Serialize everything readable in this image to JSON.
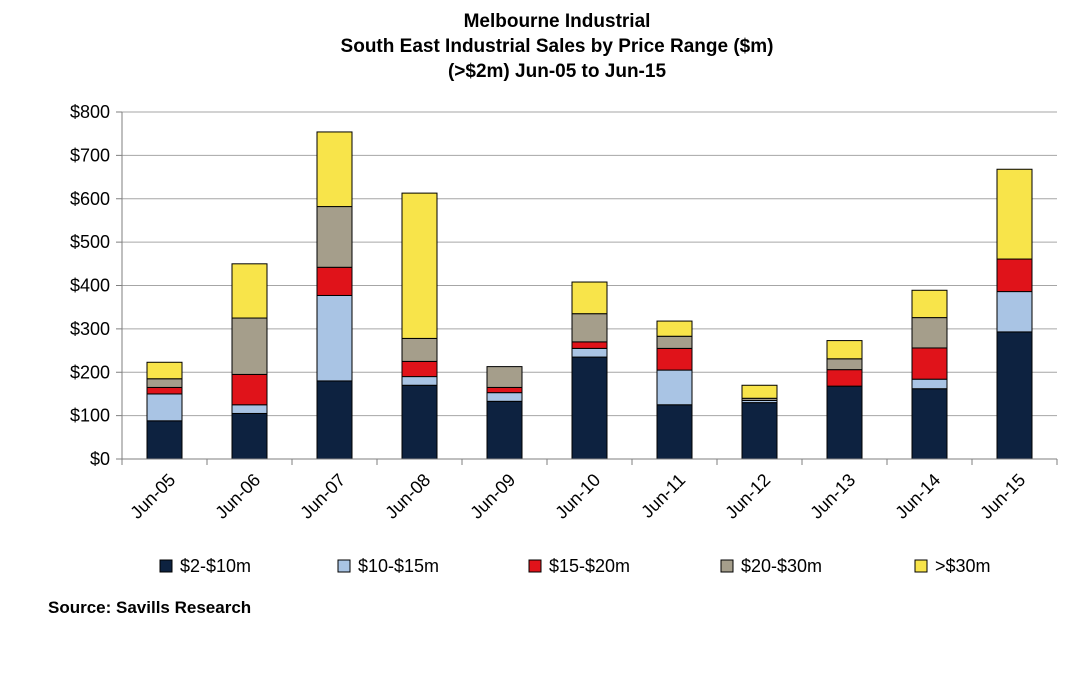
{
  "chart_data": {
    "type": "bar",
    "stacked": true,
    "title_lines": [
      "Melbourne Industrial",
      "South East Industrial Sales by Price Range ($m)",
      "(>$2m) Jun-05 to Jun-15"
    ],
    "categories": [
      "Jun-05",
      "Jun-06",
      "Jun-07",
      "Jun-08",
      "Jun-09",
      "Jun-10",
      "Jun-11",
      "Jun-12",
      "Jun-13",
      "Jun-14",
      "Jun-15"
    ],
    "series": [
      {
        "name": "$2-$10m",
        "color": "#0d2240",
        "values": [
          88,
          105,
          180,
          170,
          133,
          235,
          125,
          130,
          168,
          162,
          293
        ]
      },
      {
        "name": "$10-$15m",
        "color": "#a9c4e4",
        "values": [
          62,
          20,
          197,
          20,
          20,
          20,
          80,
          5,
          0,
          22,
          93
        ]
      },
      {
        "name": "$15-$20m",
        "color": "#e0131a",
        "values": [
          15,
          70,
          65,
          35,
          12,
          15,
          50,
          0,
          38,
          72,
          75
        ]
      },
      {
        "name": "$20-$30m",
        "color": "#a59e8b",
        "values": [
          20,
          130,
          140,
          53,
          48,
          65,
          28,
          5,
          25,
          70,
          0
        ]
      },
      {
        "name": ">$30m",
        "color": "#f8e44a",
        "values": [
          38,
          125,
          172,
          335,
          0,
          73,
          35,
          30,
          42,
          63,
          207
        ]
      }
    ],
    "ylim": [
      0,
      800
    ],
    "yticks": [
      0,
      100,
      200,
      300,
      400,
      500,
      600,
      700,
      800
    ],
    "ytick_labels": [
      "$0",
      "$100",
      "$200",
      "$300",
      "$400",
      "$500",
      "$600",
      "$700",
      "$800"
    ],
    "grid": true,
    "legend_position": "bottom",
    "source": "Source: Savills Research"
  }
}
